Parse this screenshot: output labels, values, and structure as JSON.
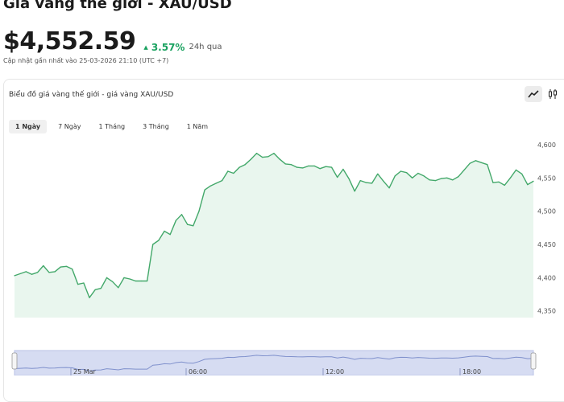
{
  "header": {
    "title": "Giá vàng thế giới - XAU/USD",
    "price": "$4,552.59",
    "change_pct": "3.57%",
    "change_period": "24h qua",
    "updated": "Cập nhật gần nhất vào 25-03-2026 21:10 (UTC +7)"
  },
  "card": {
    "title": "Biểu đồ giá vàng thế giới - giá vàng XAU/USD",
    "chart_type_buttons": [
      {
        "icon": "line-chart-icon",
        "active": true
      },
      {
        "icon": "candlestick-icon",
        "active": false
      }
    ],
    "tabs": [
      {
        "label": "1 Ngày",
        "active": true
      },
      {
        "label": "7 Ngày",
        "active": false
      },
      {
        "label": "1 Tháng",
        "active": false
      },
      {
        "label": "3 Tháng",
        "active": false
      },
      {
        "label": "1 Năm",
        "active": false
      }
    ]
  },
  "colors": {
    "line": "#43a86a",
    "fill": "#e9f6ee",
    "up": "#1aa260",
    "navigator": "#d6dcf2"
  },
  "chart_data": {
    "type": "area",
    "title": "",
    "xlabel": "",
    "ylabel": "",
    "ylim": [
      4340,
      4612
    ],
    "y_ticks": [
      "4,350",
      "4,400",
      "4,450",
      "4,500",
      "4,550",
      "4,600"
    ],
    "navigator_labels": [
      "25 Mar",
      "06:00",
      "12:00",
      "18:00"
    ],
    "values": [
      4403,
      4406,
      4409,
      4405,
      4408,
      4418,
      4408,
      4409,
      4416,
      4417,
      4413,
      4390,
      4392,
      4370,
      4382,
      4384,
      4400,
      4394,
      4385,
      4400,
      4398,
      4395,
      4395,
      4395,
      4450,
      4456,
      4470,
      4465,
      4486,
      4495,
      4480,
      4478,
      4500,
      4532,
      4538,
      4542,
      4546,
      4560,
      4557,
      4566,
      4570,
      4578,
      4587,
      4581,
      4582,
      4587,
      4578,
      4571,
      4570,
      4566,
      4565,
      4568,
      4568,
      4564,
      4567,
      4566,
      4551,
      4563,
      4549,
      4530,
      4546,
      4543,
      4542,
      4556,
      4545,
      4535,
      4553,
      4560,
      4558,
      4550,
      4557,
      4553,
      4547,
      4546,
      4549,
      4550,
      4547,
      4552,
      4562,
      4572,
      4576,
      4573,
      4570,
      4543,
      4544,
      4539,
      4550,
      4562,
      4556,
      4540,
      4545
    ]
  }
}
